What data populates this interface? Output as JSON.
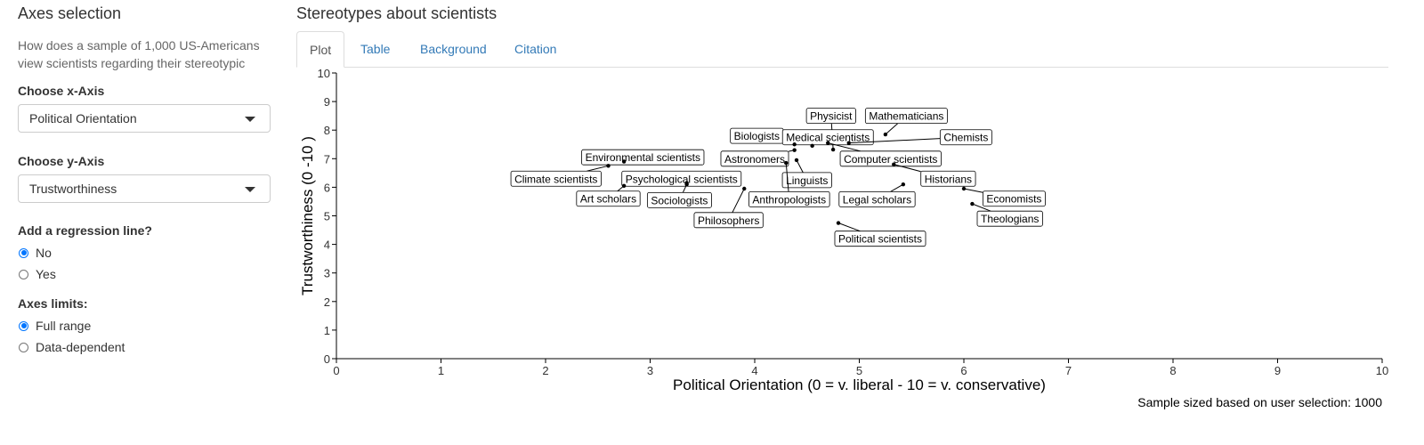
{
  "sidebar": {
    "title": "Axes selection",
    "description": "How does a sample of 1,000 US-Americans view scientists regarding their stereotypic",
    "x_axis": {
      "label": "Choose x-Axis",
      "selected": "Political Orientation"
    },
    "y_axis": {
      "label": "Choose y-Axis",
      "selected": "Trustworthiness"
    },
    "regression": {
      "label": "Add a regression line?",
      "options": [
        "No",
        "Yes"
      ],
      "selected": "No"
    },
    "limits": {
      "label": "Axes limits:",
      "options": [
        "Full range",
        "Data-dependent"
      ],
      "selected": "Full range"
    }
  },
  "main": {
    "title": "Stereotypes about scientists",
    "tabs": [
      {
        "label": "Plot",
        "active": true
      },
      {
        "label": "Table",
        "active": false
      },
      {
        "label": "Background",
        "active": false
      },
      {
        "label": "Citation",
        "active": false
      }
    ],
    "sample_note": "Sample sized based on user selection: 1000"
  },
  "chart_data": {
    "type": "scatter",
    "xlabel": "Political Orientation (0 = v. liberal - 10 = v. conservative)",
    "ylabel": "Trustworthiness (0 -10 )",
    "xlim": [
      0,
      10
    ],
    "ylim": [
      0,
      10
    ],
    "xticks": [
      0,
      1,
      2,
      3,
      4,
      5,
      6,
      7,
      8,
      9,
      10
    ],
    "yticks": [
      0,
      1,
      2,
      3,
      4,
      5,
      6,
      7,
      8,
      9,
      10
    ],
    "points": [
      {
        "label": "Physicist",
        "x": 4.75,
        "y": 7.32,
        "lx": 4.73,
        "ly": 8.5
      },
      {
        "label": "Mathematicians",
        "x": 5.25,
        "y": 7.85,
        "lx": 5.45,
        "ly": 8.5
      },
      {
        "label": "Biologists",
        "x": 4.38,
        "y": 7.5,
        "lx": 4.02,
        "ly": 7.8
      },
      {
        "label": "Medical scientists",
        "x": 4.55,
        "y": 7.45,
        "lx": 4.7,
        "ly": 7.75
      },
      {
        "label": "Chemists",
        "x": 4.9,
        "y": 7.55,
        "lx": 6.02,
        "ly": 7.75
      },
      {
        "label": "Astronomers",
        "x": 4.38,
        "y": 7.3,
        "lx": 4.0,
        "ly": 7.0
      },
      {
        "label": "Computer scientists",
        "x": 4.7,
        "y": 7.55,
        "lx": 5.3,
        "ly": 7.0
      },
      {
        "label": "Environmental scientists",
        "x": 2.75,
        "y": 6.9,
        "lx": 2.93,
        "ly": 7.05
      },
      {
        "label": "Climate scientists",
        "x": 2.6,
        "y": 6.75,
        "lx": 2.1,
        "ly": 6.3
      },
      {
        "label": "Psychological scientists",
        "x": 3.35,
        "y": 6.15,
        "lx": 3.3,
        "ly": 6.3
      },
      {
        "label": "Linguists",
        "x": 4.4,
        "y": 6.95,
        "lx": 4.5,
        "ly": 6.25
      },
      {
        "label": "Historians",
        "x": 5.33,
        "y": 6.8,
        "lx": 5.85,
        "ly": 6.3
      },
      {
        "label": "Art scholars",
        "x": 2.75,
        "y": 6.05,
        "lx": 2.6,
        "ly": 5.6
      },
      {
        "label": "Sociologists",
        "x": 3.35,
        "y": 6.1,
        "lx": 3.28,
        "ly": 5.55
      },
      {
        "label": "Anthropologists",
        "x": 4.3,
        "y": 6.85,
        "lx": 4.33,
        "ly": 5.58
      },
      {
        "label": "Legal scholars",
        "x": 5.42,
        "y": 6.1,
        "lx": 5.17,
        "ly": 5.58
      },
      {
        "label": "Economists",
        "x": 6.0,
        "y": 5.95,
        "lx": 6.48,
        "ly": 5.6
      },
      {
        "label": "Philosophers",
        "x": 3.9,
        "y": 5.95,
        "lx": 3.75,
        "ly": 4.85
      },
      {
        "label": "Theologians",
        "x": 6.08,
        "y": 5.42,
        "lx": 6.44,
        "ly": 4.9
      },
      {
        "label": "Political scientists",
        "x": 4.8,
        "y": 4.75,
        "lx": 5.2,
        "ly": 4.2
      }
    ]
  }
}
